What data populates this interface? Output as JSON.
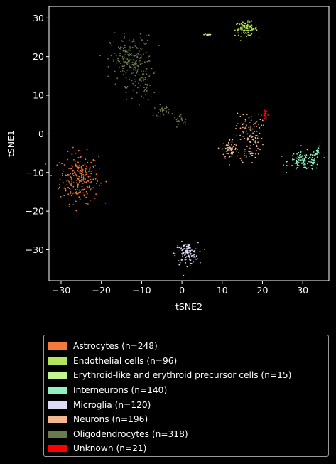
{
  "chart_data": {
    "type": "scatter",
    "title": "",
    "xlabel": "tSNE2",
    "ylabel": "tSNE1",
    "xlim": [
      -33,
      36.5
    ],
    "ylim": [
      -38,
      33
    ],
    "xticks": [
      -30,
      -20,
      -10,
      0,
      10,
      20,
      30
    ],
    "yticks": [
      -30,
      -20,
      -10,
      0,
      10,
      20,
      30
    ],
    "grid": false,
    "legend_position": "below plot",
    "series": [
      {
        "name": "Astrocytes (n=248)",
        "color": "#f4793b",
        "n": 248,
        "clusters": [
          {
            "cx": -25.5,
            "cy": -11.5,
            "sx": 2.4,
            "sy": 3.2,
            "w": 1
          }
        ]
      },
      {
        "name": "Endothelial cells (n=96)",
        "color": "#b5e35b",
        "n": 96,
        "clusters": [
          {
            "cx": 16.0,
            "cy": 27.2,
            "sx": 1.4,
            "sy": 0.9,
            "w": 1
          }
        ]
      },
      {
        "name": "Erythroid-like and erythroid precursor cells (n=15)",
        "color": "#c1f58f",
        "n": 15,
        "clusters": [
          {
            "cx": 6.5,
            "cy": 25.7,
            "sx": 0.5,
            "sy": 0.15,
            "w": 1
          }
        ]
      },
      {
        "name": "Interneurons (n=140)",
        "color": "#90f0c0",
        "n": 140,
        "clusters": [
          {
            "cx": 30.5,
            "cy": -7.0,
            "sx": 2.0,
            "sy": 1.2,
            "w": 0.9
          },
          {
            "cx": 34.0,
            "cy": -4.0,
            "sx": 0.5,
            "sy": 0.6,
            "w": 0.1
          }
        ]
      },
      {
        "name": "Microglia (n=120)",
        "color": "#dcdaf5",
        "n": 120,
        "clusters": [
          {
            "cx": 1.2,
            "cy": -31.0,
            "sx": 1.4,
            "sy": 1.4,
            "w": 1
          }
        ]
      },
      {
        "name": "Neurons (n=196)",
        "color": "#f4b78f",
        "n": 196,
        "clusters": [
          {
            "cx": 12.0,
            "cy": -4.0,
            "sx": 1.0,
            "sy": 1.4,
            "w": 0.35
          },
          {
            "cx": 17.0,
            "cy": -3.0,
            "sx": 1.3,
            "sy": 2.3,
            "w": 0.35
          },
          {
            "cx": 16.5,
            "cy": 1.5,
            "sx": 1.6,
            "sy": 2.0,
            "w": 0.3
          }
        ]
      },
      {
        "name": "Oligodendrocytes (n=318)",
        "color": "#697a4e",
        "n": 318,
        "clusters": [
          {
            "cx": -12.5,
            "cy": 19.0,
            "sx": 2.6,
            "sy": 3.2,
            "w": 0.72
          },
          {
            "cx": -9.0,
            "cy": 12.0,
            "sx": 1.2,
            "sy": 1.6,
            "w": 0.12
          },
          {
            "cx": -5.0,
            "cy": 6.0,
            "sx": 1.0,
            "sy": 0.7,
            "w": 0.09
          },
          {
            "cx": 0.0,
            "cy": 3.5,
            "sx": 1.0,
            "sy": 0.6,
            "w": 0.07
          }
        ]
      },
      {
        "name": "Unknown (n=21)",
        "color": "#ff0000",
        "n": 21,
        "clusters": [
          {
            "cx": 20.8,
            "cy": 5.0,
            "sx": 0.4,
            "sy": 0.8,
            "w": 1
          }
        ]
      }
    ]
  }
}
